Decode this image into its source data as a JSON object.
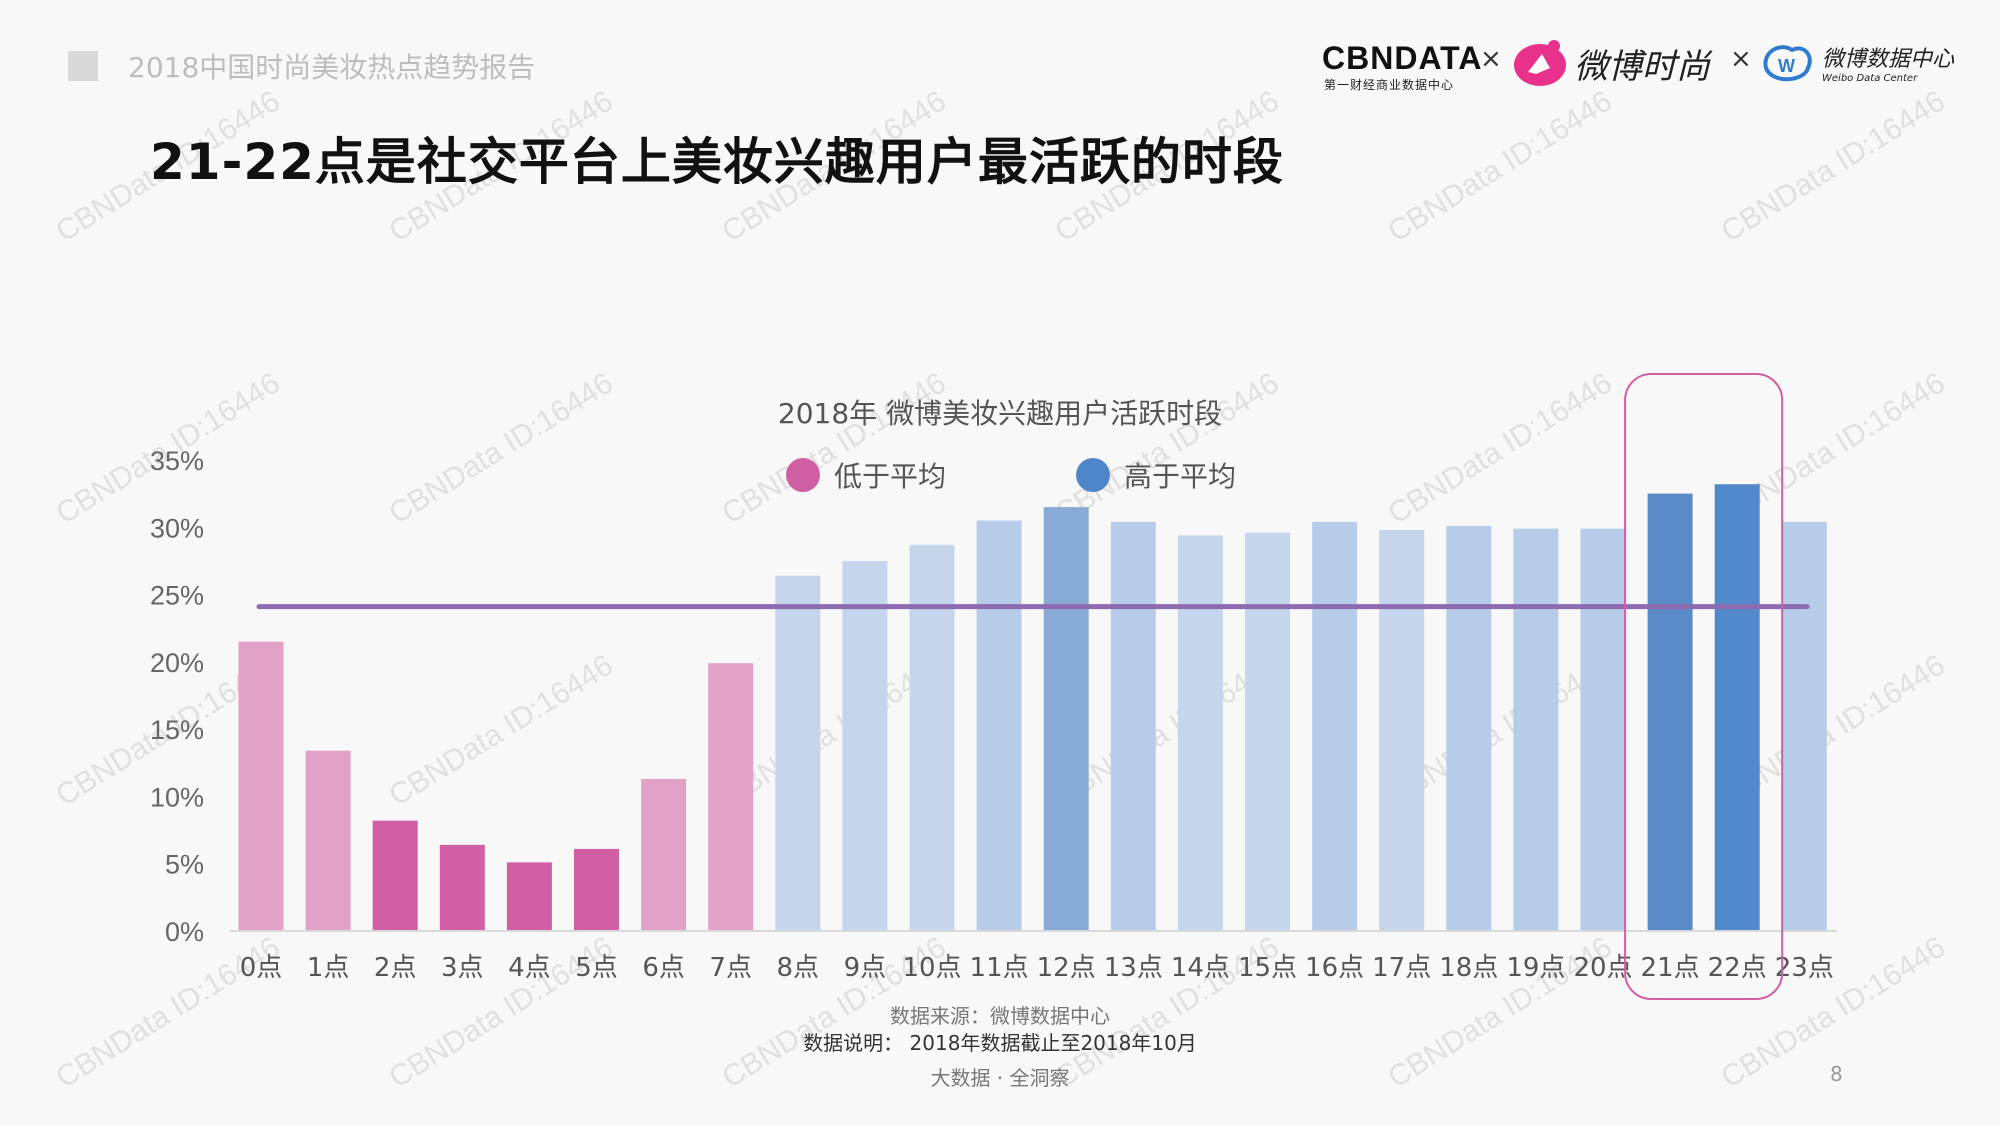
{
  "header": {
    "report_title": "2018中国时尚美妆热点趋势报告"
  },
  "title": "21-22点是社交平台上美妆兴趣用户最活跃的时段",
  "logos": {
    "cbndata": "CBNDATA",
    "cbndata_sub": "第一财经商业数据中心",
    "separator": "×",
    "weibo_fashion": "微博时尚",
    "weibo_data_center": "微博数据中心",
    "weibo_data_center_en": "Weibo Data Center"
  },
  "watermark": "CBNData ID:16446",
  "chart_data": {
    "type": "bar",
    "title": "2018年 微博美妆兴趣用户活跃时段",
    "categories": [
      "0点",
      "1点",
      "2点",
      "3点",
      "4点",
      "5点",
      "6点",
      "7点",
      "8点",
      "9点",
      "10点",
      "11点",
      "12点",
      "13点",
      "14点",
      "15点",
      "16点",
      "17点",
      "18点",
      "19点",
      "20点",
      "21点",
      "22点",
      "23点"
    ],
    "values": [
      21.5,
      13.4,
      8.2,
      6.4,
      5.1,
      6.1,
      11.3,
      19.9,
      26.4,
      27.5,
      28.7,
      30.5,
      31.5,
      30.4,
      29.4,
      29.6,
      30.4,
      29.8,
      30.1,
      29.9,
      29.9,
      32.5,
      33.2,
      30.4
    ],
    "colors": [
      "#e2a1c7",
      "#e2a1c7",
      "#d05fa3",
      "#d05fa3",
      "#d05fa3",
      "#d05fa3",
      "#e2a1c7",
      "#e2a1c7",
      "#c5d5ec",
      "#c5d5ec",
      "#c5d5ec",
      "#b7cce8",
      "#8aaad6",
      "#b7cce8",
      "#c5d5ec",
      "#c5d5ec",
      "#b7cce8",
      "#c5d5ec",
      "#b7cce8",
      "#b7cce8",
      "#b7cce8",
      "#5a8ac6",
      "#5289ca",
      "#b7cce8"
    ],
    "average": 24.1,
    "average_color": "#8e6bb0",
    "ylim": [
      0,
      35
    ],
    "yticks": [
      "0%",
      "5%",
      "10%",
      "15%",
      "20%",
      "25%",
      "30%",
      "35%"
    ],
    "ytick_values": [
      0,
      5,
      10,
      15,
      20,
      25,
      30,
      35
    ],
    "legend": [
      {
        "label": "低于平均",
        "color": "#d05fa3"
      },
      {
        "label": "高于平均",
        "color": "#4f86c9"
      }
    ],
    "legend_placement": "top-center",
    "highlight": [
      "21点",
      "22点"
    ],
    "highlight_color": "#d05fa3",
    "grid": false
  },
  "footer": {
    "source": "数据来源：微博数据中心",
    "note": "数据说明： 2018年数据截止至2018年10月",
    "slogan": "大数据 · 全洞察",
    "page": "8"
  }
}
